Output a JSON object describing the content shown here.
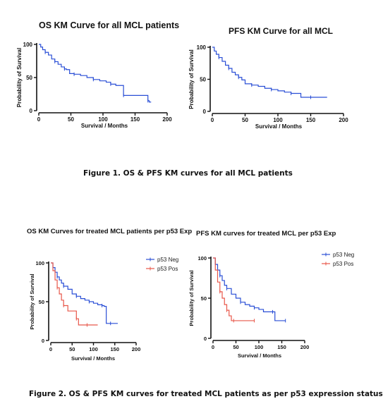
{
  "figure1": {
    "caption": "Figure 1. OS & PFS KM curves for all MCL patients"
  },
  "figure2": {
    "caption": "Figure 2.  OS & PFS KM curves for treated MCL patients as per p53 expression status"
  },
  "colors": {
    "blue": "#2a4fd6",
    "red": "#e8574a",
    "axis": "#111111"
  },
  "chart_data": [
    {
      "type": "line",
      "title": "OS KM  Curve for all MCL patients",
      "xlabel": "Survival / Months",
      "ylabel": "Probability of Survival",
      "xlim": [
        0,
        200
      ],
      "ylim": [
        0,
        100
      ],
      "xticks": [
        "0",
        "50",
        "100",
        "150",
        "200"
      ],
      "yticks": [
        "0",
        "50",
        "100"
      ],
      "series": [
        {
          "color": "#2a4fd6",
          "x": [
            0,
            3,
            6,
            10,
            15,
            20,
            25,
            30,
            35,
            40,
            43,
            48,
            55,
            65,
            75,
            85,
            95,
            105,
            112,
            120,
            128,
            132,
            150,
            165,
            170,
            172,
            175
          ],
          "y": [
            100,
            96,
            92,
            88,
            84,
            78,
            74,
            70,
            66,
            63,
            62,
            56,
            55,
            53,
            50,
            47,
            45,
            43,
            40,
            38,
            38,
            23,
            23,
            23,
            15,
            13,
            13
          ]
        }
      ]
    },
    {
      "type": "line",
      "title": "PFS KM Curve for all MCL",
      "xlabel": "Survival / Months",
      "ylabel": "Probability of Survival",
      "xlim": [
        0,
        200
      ],
      "ylim": [
        0,
        100
      ],
      "xticks": [
        "0",
        "50",
        "100",
        "150",
        "200"
      ],
      "yticks": [
        "0",
        "50",
        "100"
      ],
      "series": [
        {
          "color": "#2a4fd6",
          "x": [
            0,
            3,
            6,
            10,
            15,
            20,
            25,
            30,
            35,
            40,
            45,
            50,
            60,
            70,
            80,
            90,
            100,
            110,
            120,
            130,
            135,
            150,
            165,
            175
          ],
          "y": [
            100,
            94,
            89,
            84,
            78,
            72,
            67,
            61,
            57,
            53,
            49,
            43,
            41,
            39,
            36,
            34,
            32,
            30,
            28,
            28,
            22,
            22,
            22,
            22
          ]
        }
      ]
    },
    {
      "type": "line",
      "title": "OS KM Curves for treated MCL patients per p53 Exp",
      "xlabel": "Survival / Months",
      "ylabel": "Probability of Survival",
      "xlim": [
        0,
        200
      ],
      "ylim": [
        0,
        100
      ],
      "xticks": [
        "0",
        "50",
        "100",
        "150",
        "200"
      ],
      "yticks": [
        "0",
        "50",
        "100"
      ],
      "legend": "top-right",
      "series": [
        {
          "name": "p53 Neg",
          "color": "#2a4fd6",
          "x": [
            0,
            5,
            10,
            15,
            20,
            25,
            30,
            40,
            50,
            60,
            70,
            80,
            90,
            100,
            110,
            120,
            125,
            130,
            140,
            150,
            157
          ],
          "y": [
            100,
            94,
            88,
            82,
            78,
            74,
            70,
            66,
            60,
            57,
            54,
            52,
            50,
            48,
            46,
            45,
            44,
            22,
            22,
            22,
            22
          ]
        },
        {
          "name": "p53 Pos",
          "color": "#e8574a",
          "x": [
            0,
            5,
            10,
            15,
            20,
            25,
            30,
            40,
            50,
            60,
            65,
            75,
            85,
            95,
            110
          ],
          "y": [
            100,
            90,
            78,
            68,
            60,
            52,
            45,
            38,
            38,
            28,
            20,
            20,
            20,
            20,
            20
          ]
        }
      ]
    },
    {
      "type": "line",
      "title": "PFS KM curves for treated MCL per p53  Exp",
      "xlabel": "Survival / Months",
      "ylabel": "Probability of Survival",
      "xlim": [
        0,
        200
      ],
      "ylim": [
        0,
        100
      ],
      "xticks": [
        "0",
        "50",
        "100",
        "150",
        "200"
      ],
      "yticks": [
        "0",
        "50",
        "100"
      ],
      "legend": "top-right",
      "series": [
        {
          "name": "p53 Neg",
          "color": "#2a4fd6",
          "x": [
            0,
            5,
            10,
            15,
            20,
            25,
            30,
            40,
            50,
            60,
            70,
            80,
            90,
            100,
            110,
            130,
            135,
            150,
            158
          ],
          "y": [
            100,
            92,
            85,
            78,
            72,
            66,
            62,
            55,
            50,
            45,
            42,
            40,
            38,
            36,
            33,
            33,
            22,
            22,
            22
          ]
        },
        {
          "name": "p53 Pos",
          "color": "#e8574a",
          "x": [
            0,
            5,
            10,
            15,
            20,
            25,
            30,
            35,
            40,
            45,
            60,
            80,
            90
          ],
          "y": [
            100,
            85,
            70,
            58,
            50,
            42,
            35,
            28,
            22,
            22,
            22,
            22,
            22
          ]
        }
      ]
    }
  ]
}
